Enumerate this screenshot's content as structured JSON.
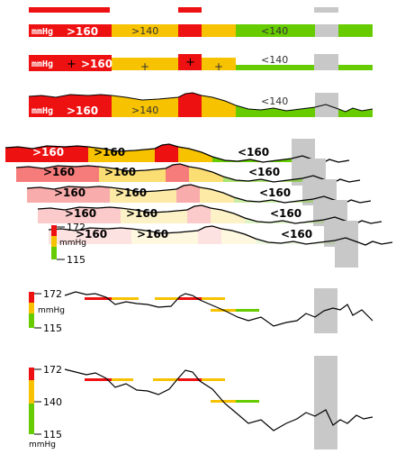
{
  "colors": {
    "red": "#ee1111",
    "yellow": "#f7c200",
    "green": "#66cc00",
    "gray": "#c8c8c8",
    "line": "#000000",
    "white_text": "#ffffff",
    "dark_text": "#333333",
    "soft_red": "#f5a0a0",
    "soft_yellow": "#fbe08a",
    "soft_green": "#c8eea0"
  },
  "row1": {},
  "row2": {
    "unit": "mmHg",
    "high_label": ">160",
    "mid_label": ">140",
    "low_label": "<140"
  },
  "row3": {
    "unit": "mmHg",
    "high_label": ">160",
    "plus": "+",
    "plus2": "+",
    "low_label": "<140"
  },
  "row4": {
    "unit": "mmHg",
    "high_label": ">160",
    "mid_label": ">140",
    "low_label": "<140"
  },
  "stack": {
    "high_label": ">160",
    "mid_label": ">160",
    "low_label": "<160",
    "axis_top": "172",
    "axis_unit": "mmHg",
    "axis_bottom": "115"
  },
  "chart6": {
    "axis_top": "172",
    "axis_unit": "mmHg",
    "axis_bottom": "115"
  },
  "chart7": {
    "axis_top": "172",
    "axis_mid": "140",
    "axis_bottom": "115",
    "axis_unit": "mmHg"
  }
}
